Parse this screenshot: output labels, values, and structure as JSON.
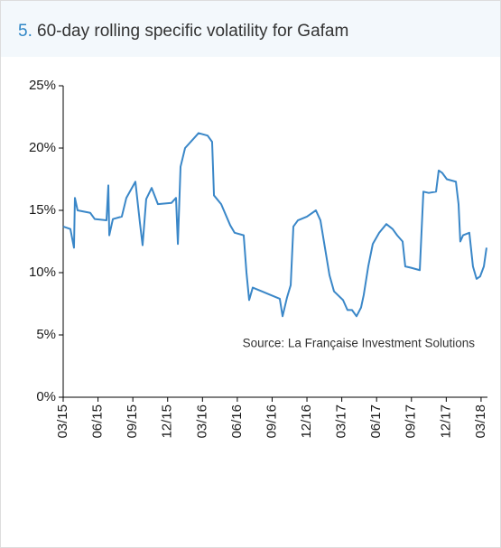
{
  "chart_data": {
    "type": "line",
    "number": "5.",
    "title": "60-day rolling specific volatility for Gafam",
    "annotation": "Source: La Française Investment Solutions",
    "xlim": [
      0,
      36.55
    ],
    "xticks": [
      {
        "value": 0,
        "label": "03/15"
      },
      {
        "value": 3,
        "label": "06/15"
      },
      {
        "value": 6,
        "label": "09/15"
      },
      {
        "value": 9,
        "label": "12/15"
      },
      {
        "value": 12,
        "label": "03/16"
      },
      {
        "value": 15,
        "label": "06/16"
      },
      {
        "value": 18,
        "label": "09/16"
      },
      {
        "value": 21,
        "label": "12/16"
      },
      {
        "value": 24,
        "label": "03/17"
      },
      {
        "value": 27,
        "label": "06/17"
      },
      {
        "value": 30,
        "label": "09/17"
      },
      {
        "value": 33,
        "label": "12/17"
      },
      {
        "value": 36,
        "label": "03/18"
      }
    ],
    "ylim": [
      0,
      25
    ],
    "yticks": [
      {
        "value": 0,
        "label": "0%"
      },
      {
        "value": 5,
        "label": "5%"
      },
      {
        "value": 10,
        "label": "10%"
      },
      {
        "value": 15,
        "label": "15%"
      },
      {
        "value": 20,
        "label": "20%"
      },
      {
        "value": 25,
        "label": "25%"
      }
    ],
    "color": "#3a87c8",
    "x": [
      0,
      0.62,
      0.93,
      1.01,
      1.24,
      2.33,
      2.72,
      3.73,
      3.89,
      3.97,
      4.28,
      5.05,
      5.44,
      6.22,
      6.61,
      6.84,
      7.15,
      7.62,
      8.16,
      9.33,
      9.72,
      9.88,
      10.11,
      10.5,
      11.28,
      11.66,
      12.44,
      12.83,
      12.99,
      13.61,
      14.39,
      14.77,
      15.55,
      15.79,
      16.02,
      16.33,
      17.11,
      17.88,
      18.66,
      18.9,
      19.28,
      19.6,
      19.83,
      20.22,
      21,
      21.77,
      22.16,
      22.55,
      22.94,
      23.33,
      24.11,
      24.49,
      24.88,
      25.27,
      25.66,
      25.89,
      26.28,
      26.67,
      27.22,
      27.84,
      28.38,
      28.77,
      29.24,
      29.47,
      29.94,
      30.72,
      31.03,
      31.49,
      32.12,
      32.35,
      32.66,
      33.05,
      33.83,
      34.06,
      34.21,
      34.45,
      34.99,
      35.3,
      35.61,
      35.92,
      36.24,
      36.47
    ],
    "values": [
      13.7,
      13.5,
      12,
      16,
      15,
      14.8,
      14.3,
      14.2,
      17,
      13,
      14.3,
      14.5,
      16,
      17.3,
      14,
      12.2,
      15.9,
      16.8,
      15.5,
      15.6,
      16,
      12.3,
      18.5,
      20,
      20.8,
      21.2,
      21,
      20.5,
      16.2,
      15.5,
      13.8,
      13.2,
      13,
      10,
      7.8,
      8.8,
      8.5,
      8.2,
      7.9,
      6.5,
      8,
      9,
      13.7,
      14.2,
      14.5,
      15,
      14.2,
      12,
      9.8,
      8.5,
      7.8,
      7,
      7,
      6.5,
      7.2,
      8.2,
      10.5,
      12.3,
      13.2,
      13.9,
      13.5,
      13,
      12.5,
      10.5,
      10.4,
      10.2,
      16.5,
      16.4,
      16.5,
      18.2,
      18,
      17.5,
      17.3,
      15.5,
      12.5,
      13,
      13.2,
      10.5,
      9.5,
      9.7,
      10.5,
      12
    ]
  }
}
